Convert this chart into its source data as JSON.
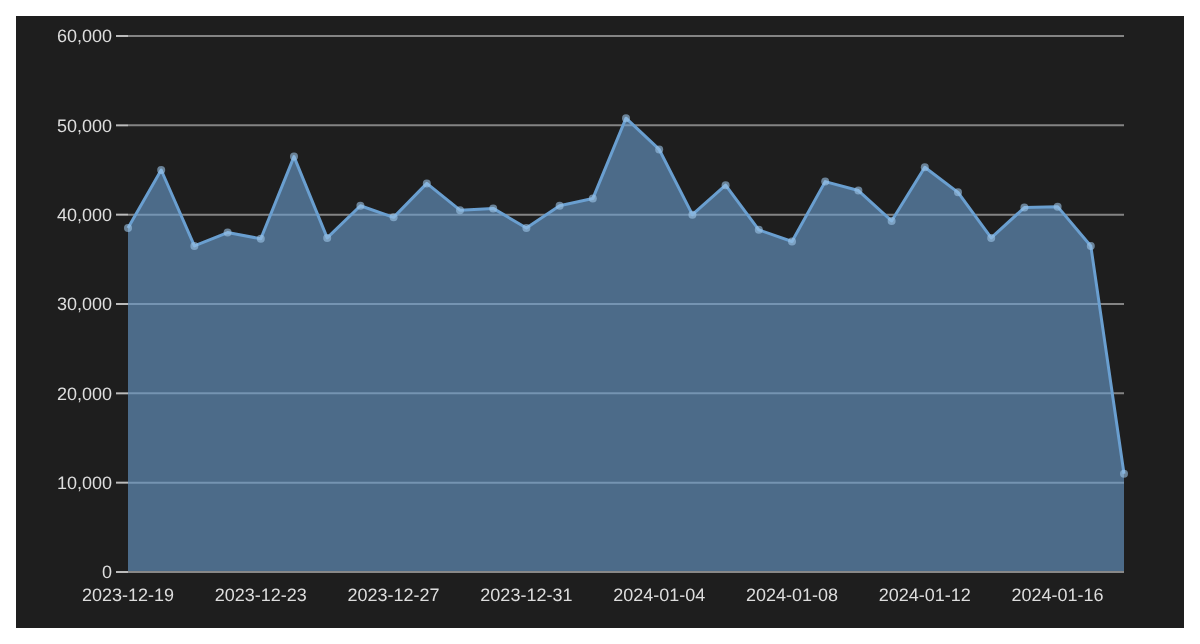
{
  "chart_data": {
    "type": "area",
    "categories": [
      "2023-12-19",
      null,
      null,
      null,
      "2023-12-23",
      null,
      null,
      null,
      "2023-12-27",
      null,
      null,
      null,
      "2023-12-31",
      null,
      null,
      null,
      "2024-01-04",
      null,
      null,
      null,
      "2024-01-08",
      null,
      null,
      null,
      "2024-01-12",
      null,
      null,
      null,
      "2024-01-16",
      null,
      null
    ],
    "series": [
      {
        "color": "#6a9fd0",
        "values": [
          38500,
          45000,
          36500,
          38000,
          37300,
          46500,
          37400,
          41000,
          39700,
          43500,
          40500,
          40700,
          38500,
          41000,
          41800,
          50800,
          47300,
          40000,
          43300,
          38300,
          37000,
          43700,
          42700,
          39300,
          45300,
          42500,
          37400,
          40800,
          40900,
          36500,
          11000
        ]
      }
    ],
    "ylim": [
      0,
      60000
    ],
    "yticks": [
      {
        "value": 0,
        "label": "0"
      },
      {
        "value": 10000,
        "label": "10,000"
      },
      {
        "value": 20000,
        "label": "20,000"
      },
      {
        "value": 30000,
        "label": "30,000"
      },
      {
        "value": 40000,
        "label": "40,000"
      },
      {
        "value": 50000,
        "label": "50,000"
      },
      {
        "value": 60000,
        "label": "60,000"
      }
    ],
    "grid": "y",
    "marker": "circle"
  }
}
